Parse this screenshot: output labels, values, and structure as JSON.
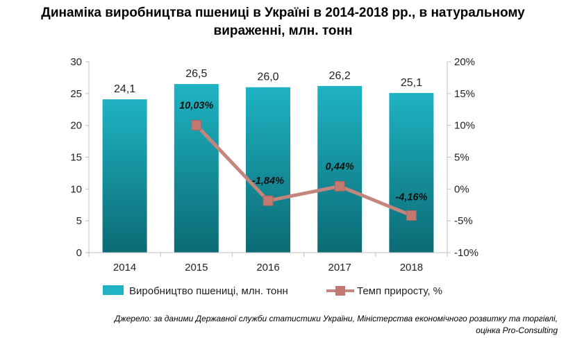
{
  "title_line1": "Динаміка виробництва пшениці в Україні в 2014-2018 рр., в натуральному",
  "title_line2": "вираженні, млн. тонн",
  "source_line1": "Джерело: за даними Державної служби статистики України, Міністерства економічного розвитку та торгівлі,",
  "source_line2": "оцінка Pro-Consulting",
  "colors": {
    "bar_top": "#1fb3c3",
    "bar_bottom": "#0b6b74",
    "line": "#c4867c",
    "marker": "#c27a70",
    "axis": "#bfbfbf"
  },
  "chart_data": {
    "type": "bar",
    "categories": [
      "2014",
      "2015",
      "2016",
      "2017",
      "2018"
    ],
    "series": [
      {
        "name": "Виробництво  пшениці, млн. тонн",
        "type": "bar",
        "axis": "left",
        "values": [
          24.1,
          26.5,
          26.0,
          26.2,
          25.1
        ],
        "labels": [
          "24,1",
          "26,5",
          "26,0",
          "26,2",
          "25,1"
        ]
      },
      {
        "name": "Темп  приросту,  %",
        "type": "line",
        "axis": "right",
        "values": [
          null,
          10.03,
          -1.84,
          0.44,
          -4.16
        ],
        "labels": [
          "",
          "10,03%",
          "-1,84%",
          "0,44%",
          "-4,16%"
        ]
      }
    ],
    "y_left": {
      "range": [
        0,
        30
      ],
      "ticks": [
        "0",
        "5",
        "10",
        "15",
        "20",
        "25",
        "30"
      ]
    },
    "y_right": {
      "range": [
        -10,
        20
      ],
      "ticks": [
        "-10%",
        "-5%",
        "0%",
        "5%",
        "10%",
        "15%",
        "20%"
      ]
    },
    "legend_position": "bottom",
    "grid": false
  }
}
